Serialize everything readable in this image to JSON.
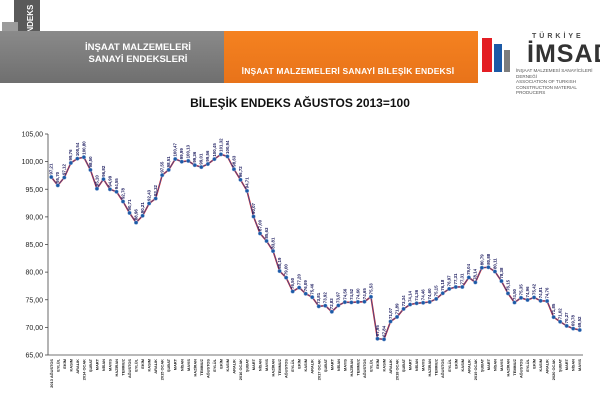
{
  "header": {
    "logo_text": "ENDEKS",
    "index_label_line1": "İNŞAAT MALZEMELERİ",
    "index_label_line2": "SANAYİ ENDEKSLERİ",
    "report_title": "İNŞAAT MALZEMELERİ SANAYİ BİLEŞİK ENDEKSİ",
    "imsad_top": "TÜRKİYE",
    "imsad_name": "İMSAD",
    "imsad_sub_line1": "İNŞAAT MALZEMESİ SANAYİCİLERİ DERNEĞİ",
    "imsad_sub_line2": "ASSOCIATION OF TURKISH CONSTRUCTION MATERIAL PRODUCERS",
    "colors": {
      "orange": "#f58220",
      "grey": "#7d7d7d",
      "red": "#e31e24",
      "blue": "#1c5aa6"
    }
  },
  "chart_data": {
    "type": "line",
    "title": "BİLEŞİK ENDEKS AĞUSTOS 2013=100",
    "xlabel": "",
    "ylabel": "",
    "ylim": [
      65,
      105
    ],
    "yticks": [
      "65,00",
      "70,00",
      "75,00",
      "80,00",
      "85,00",
      "90,00",
      "95,00",
      "100,00",
      "105,00"
    ],
    "grid": false,
    "series": [
      {
        "values": [
          97.21,
          95.7,
          97.12,
          99.76,
          100.54,
          100.8,
          98.5,
          95.1,
          96.82,
          94.99,
          94.55,
          92.78,
          90.71,
          88.96,
          90.21,
          92.43,
          93.32,
          97.55,
          98.51,
          100.47,
          99.99,
          100.13,
          99.36,
          99.01,
          99.56,
          100.45,
          101.32,
          100.94,
          98.63,
          96.72,
          94.71,
          90.07,
          87.0,
          85.63,
          83.81,
          80.19,
          79.0,
          76.5,
          77.2,
          76.09,
          75.46,
          73.81,
          73.92,
          72.83,
          73.97,
          74.56,
          74.52,
          74.6,
          74.65,
          75.53,
          67.95,
          67.84,
          71.07,
          71.89,
          73.34,
          74.14,
          74.36,
          74.46,
          74.6,
          75.15,
          76.18,
          76.97,
          77.31,
          77.31,
          79.04,
          78.14,
          80.79,
          80.88,
          80.11,
          78.38,
          76.15,
          74.5,
          75.35,
          74.96,
          75.42,
          74.81,
          74.76,
          71.85,
          71.02,
          70.27,
          69.78,
          69.52
        ]
      }
    ],
    "point_labels": [
      "97,21",
      "95,70",
      "97,12",
      "99,76",
      "100,54",
      "100,80",
      "98,50",
      "95,10",
      "96,82",
      "94,99",
      "94,55",
      "92,78",
      "90,71",
      "88,96",
      "90,21",
      "92,43",
      "93,32",
      "97,55",
      "98,51",
      "100,47",
      "99,99",
      "100,13",
      "99,36",
      "99,01",
      "99,56",
      "100,45",
      "101,32",
      "100,94",
      "98,63",
      "96,72",
      "94,71",
      "90,07",
      "87,00",
      "85,63",
      "83,81",
      "80,19",
      "79,00",
      "76,50",
      "77,20",
      "76,09",
      "75,46",
      "73,81",
      "73,92",
      "72,83",
      "73,97",
      "74,56",
      "74,52",
      "74,60",
      "74,65",
      "75,53",
      "67,95",
      "67,84",
      "71,07",
      "71,89",
      "73,34",
      "74,14",
      "74,36",
      "74,46",
      "74,60",
      "75,15",
      "76,18",
      "76,97",
      "77,31",
      "77,31",
      "79,04",
      "78,14",
      "80,79",
      "80,88",
      "80,11",
      "78,38",
      "76,15",
      "74,50",
      "75,35",
      "74,96",
      "75,42",
      "74,81",
      "74,76",
      "71,85",
      "71,02",
      "70,27",
      "69,78",
      "69,52"
    ],
    "categories": [
      "2013 AĞUSTOS",
      "EYLÜL",
      "EKİM",
      "KASIM",
      "ARALIK",
      "2014 OCAK",
      "ŞUBAT",
      "MART",
      "NİSAN",
      "MAYIS",
      "HAZİRAN",
      "TEMMUZ",
      "AĞUSTOS",
      "EYLÜL",
      "EKİM",
      "KASIM",
      "ARALIK",
      "2015 OCAK",
      "ŞUBAT",
      "MART",
      "NİSAN",
      "MAYIS",
      "HAZİRAN",
      "TEMMUZ",
      "AĞUSTOS",
      "EYLÜL",
      "EKİM",
      "KASIM",
      "ARALIK",
      "2016 OCAK",
      "ŞUBAT",
      "MART",
      "NİSAN",
      "MAYIS",
      "HAZİRAN",
      "TEMMUZ",
      "AĞUSTOS",
      "EYLÜL",
      "EKİM",
      "KASIM",
      "ARALIK",
      "2017 OCAK",
      "ŞUBAT",
      "MART",
      "NİSAN",
      "MAYIS",
      "HAZİRAN",
      "TEMMUZ",
      "AĞUSTOS",
      "EYLÜL",
      "EKİM",
      "KASIM",
      "ARALIK",
      "2018 OCAK",
      "ŞUBAT",
      "MART",
      "NİSAN",
      "MAYIS",
      "HAZİRAN",
      "TEMMUZ",
      "AĞUSTOS",
      "EYLÜL",
      "EKİM",
      "KASIM",
      "ARALIK",
      "2019 OCAK",
      "ŞUBAT",
      "MART",
      "NİSAN",
      "MAYIS",
      "HAZİRAN",
      "TEMMUZ",
      "AĞUSTOS",
      "EYLÜL",
      "EKİM",
      "KASIM",
      "ARALIK",
      "2020 OCAK",
      "ŞUBAT",
      "MART",
      "NİSAN",
      "MAYIS"
    ]
  }
}
